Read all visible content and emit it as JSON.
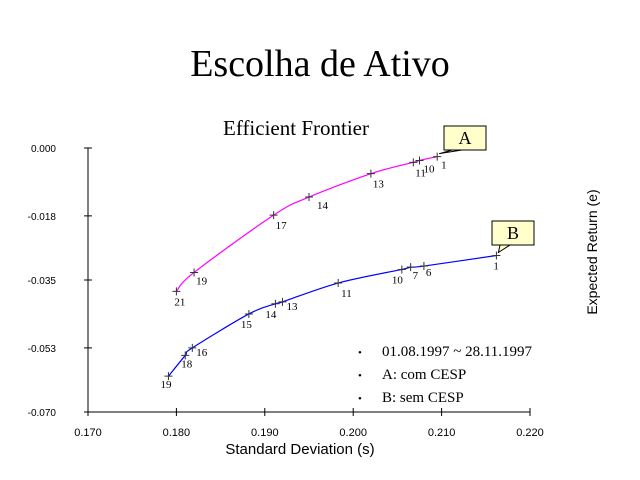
{
  "slide": {
    "title": "Escolha de Ativo",
    "notes": [
      "01.08.1997 ~ 28.11.1997",
      "A: com CESP",
      "B: sem CESP"
    ]
  },
  "chart_data": {
    "type": "line",
    "title": "Efficient Frontier",
    "xlabel": "Standard Deviation (s)",
    "ylabel": "Expected Return (e)",
    "xlim": [
      0.17,
      0.22
    ],
    "ylim": [
      -0.07,
      0.0
    ],
    "x_ticks": [
      "0.170",
      "0.180",
      "0.190",
      "0.200",
      "0.210",
      "0.220"
    ],
    "y_ticks": [
      "0.000",
      "-0.018",
      "-0.035",
      "-0.053",
      "-0.070"
    ],
    "grid": false,
    "series": [
      {
        "name": "A",
        "color": "#ff00ff",
        "points": [
          {
            "x": 0.18,
            "y": -0.038,
            "label": "21"
          },
          {
            "x": 0.182,
            "y": -0.033,
            "label": "19"
          },
          {
            "x": 0.191,
            "y": -0.0178,
            "label": "17"
          },
          {
            "x": 0.195,
            "y": -0.013,
            "label": "14"
          },
          {
            "x": 0.202,
            "y": -0.0068,
            "label": "13"
          },
          {
            "x": 0.2068,
            "y": -0.0038,
            "label": "11"
          },
          {
            "x": 0.2075,
            "y": -0.0033,
            "label": "10"
          },
          {
            "x": 0.2095,
            "y": -0.0023,
            "label": "1"
          }
        ]
      },
      {
        "name": "B",
        "color": "#0000ff",
        "points": [
          {
            "x": 0.1791,
            "y": -0.0605,
            "label": "19"
          },
          {
            "x": 0.181,
            "y": -0.055,
            "label": "18"
          },
          {
            "x": 0.1818,
            "y": -0.053,
            "label": "16"
          },
          {
            "x": 0.1882,
            "y": -0.044,
            "label": "15"
          },
          {
            "x": 0.1912,
            "y": -0.0413,
            "label": "14"
          },
          {
            "x": 0.192,
            "y": -0.0408,
            "label": "13"
          },
          {
            "x": 0.1983,
            "y": -0.0358,
            "label": "11"
          },
          {
            "x": 0.2055,
            "y": -0.0322,
            "label": "10"
          },
          {
            "x": 0.2065,
            "y": -0.0316,
            "label": "7"
          },
          {
            "x": 0.208,
            "y": -0.0313,
            "label": "6"
          },
          {
            "x": 0.2162,
            "y": -0.0285,
            "label": "1"
          }
        ]
      }
    ],
    "callouts": [
      {
        "text": "A",
        "series": "A"
      },
      {
        "text": "B",
        "series": "B"
      }
    ]
  }
}
